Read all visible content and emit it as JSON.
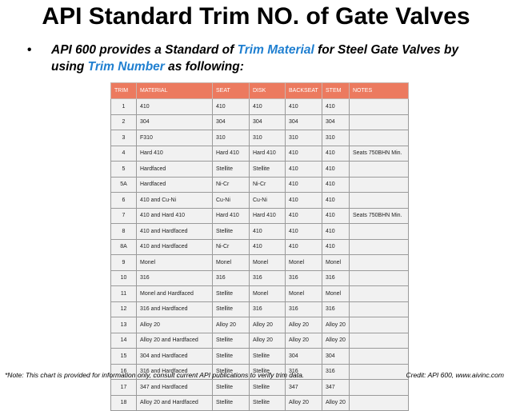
{
  "header": {
    "title": "API Standard Trim NO. of Gate Valves"
  },
  "bullet": {
    "segments": [
      {
        "text": "API 600 provides a Standard of ",
        "highlight": false
      },
      {
        "text": "Trim Material",
        "highlight": true
      },
      {
        "text": " for Steel Gate Valves by using ",
        "highlight": false
      },
      {
        "text": "Trim Number",
        "highlight": true
      },
      {
        "text": " as following:",
        "highlight": false
      }
    ]
  },
  "table": {
    "columns": [
      "TRIM",
      "MATERIAL",
      "SEAT",
      "DISK",
      "BACKSEAT",
      "STEM",
      "NOTES"
    ],
    "rows": [
      [
        "1",
        "410",
        "410",
        "410",
        "410",
        "410",
        null
      ],
      [
        "2",
        "304",
        "304",
        "304",
        "304",
        "304",
        null
      ],
      [
        "3",
        "F310",
        "310",
        "310",
        "310",
        "310",
        null
      ],
      [
        "4",
        "Hard 410",
        "Hard 410",
        "Hard 410",
        "410",
        "410",
        "Seats 750BHN Min."
      ],
      [
        "5",
        "Hardfaced",
        "Stellite",
        "Stellite",
        "410",
        "410",
        null
      ],
      [
        "5A",
        "Hardfaced",
        "Ni-Cr",
        "Ni-Cr",
        "410",
        "410",
        null
      ],
      [
        "6",
        "410 and Cu-Ni",
        "Cu-Ni",
        "Cu-Ni",
        "410",
        "410",
        null
      ],
      [
        "7",
        "410 and Hard 410",
        "Hard 410",
        "Hard 410",
        "410",
        "410",
        "Seats 750BHN Min."
      ],
      [
        "8",
        "410 and Hardfaced",
        "Stellite",
        "410",
        "410",
        "410",
        null
      ],
      [
        "8A",
        "410 and Hardfaced",
        "Ni-Cr",
        "410",
        "410",
        "410",
        null
      ],
      [
        "9",
        "Monel",
        "Monel",
        "Monel",
        "Monel",
        "Monel",
        null
      ],
      [
        "10",
        "316",
        "316",
        "316",
        "316",
        "316",
        null
      ],
      [
        "11",
        "Monel and Hardfaced",
        "Stellite",
        "Monel",
        "Monel",
        "Monel",
        null
      ],
      [
        "12",
        "316 and Hardfaced",
        "Stellite",
        "316",
        "316",
        "316",
        null
      ],
      [
        "13",
        "Alloy 20",
        "Alloy 20",
        "Alloy 20",
        "Alloy 20",
        "Alloy 20",
        null
      ],
      [
        "14",
        "Alloy 20 and Hardfaced",
        "Stellite",
        "Alloy 20",
        "Alloy 20",
        "Alloy 20",
        null
      ],
      [
        "15",
        "304 and Hardfaced",
        "Stellite",
        "Stellite",
        "304",
        "304",
        null
      ],
      [
        "16",
        "316 and Hardfaced",
        "Stellite",
        "Stellite",
        "316",
        "316",
        null
      ],
      [
        "17",
        "347 and Hardfaced",
        "Stellite",
        "Stellite",
        "347",
        "347",
        null
      ],
      [
        "18",
        "Alloy 20 and Hardfaced",
        "Stellite",
        "Stellite",
        "Alloy 20",
        "Alloy 20",
        null
      ]
    ]
  },
  "footer": {
    "note": "*Note: This chart is provided for information only, consult current API publications to verify trim data.",
    "credit": "Credit: API 600, www.aivinc.com"
  }
}
